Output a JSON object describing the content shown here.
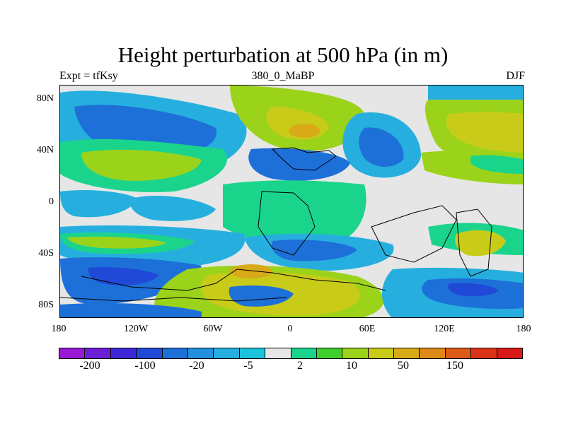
{
  "title": "Height perturbation at 500 hPa (in m)",
  "subtitle_left": "Expt = tfKsy",
  "subtitle_center": "380_0_MaBP",
  "subtitle_right": "DJF",
  "y_labels": [
    "80N",
    "40N",
    "0",
    "40S",
    "80S"
  ],
  "x_labels": [
    "180",
    "120W",
    "60W",
    "0",
    "60E",
    "120E",
    "180"
  ],
  "colorbar_colors": [
    "#9b19d6",
    "#6c1ed6",
    "#3d26d6",
    "#1f49d6",
    "#1d70d8",
    "#2290db",
    "#26afde",
    "#1bc3dc",
    "#e6e6e6",
    "#1bd48c",
    "#3fcf2b",
    "#9bd31b",
    "#c8cc18",
    "#d8aa18",
    "#de8a18",
    "#de5a18",
    "#dc3218",
    "#d81818"
  ],
  "colorbar_labels": [
    "-200",
    "-100",
    "-20",
    "-5",
    "2",
    "10",
    "50",
    "150"
  ],
  "map_colors": {
    "background": "#e6e6e6",
    "neg_light": "#26afde",
    "neg_mid": "#1d70d8",
    "neg_strong": "#1f49d6",
    "pos_light": "#1bd48c",
    "pos_mid": "#9bd31b",
    "pos_strong": "#c8cc18",
    "pos_peak": "#d8aa18"
  }
}
